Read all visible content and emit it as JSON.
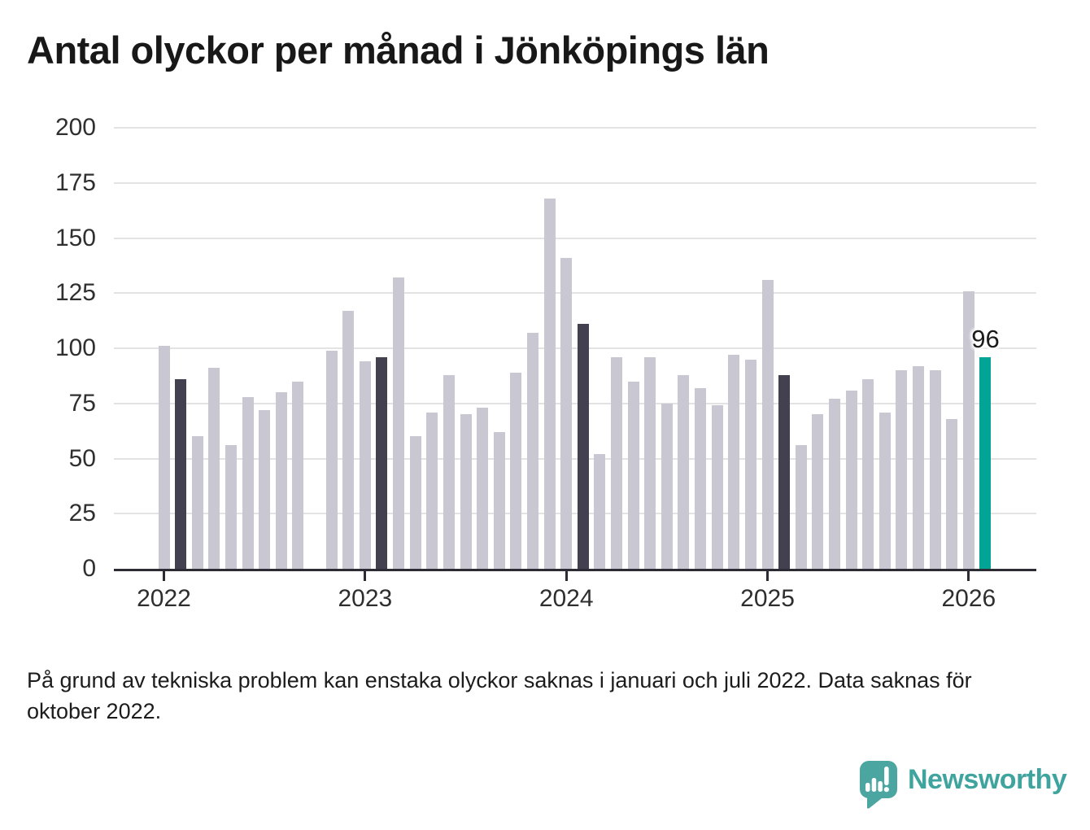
{
  "chart_data": {
    "type": "bar",
    "title": "Antal olyckor per månad i Jönköpings län",
    "xlabel": "",
    "ylabel": "",
    "ylim": [
      0,
      200
    ],
    "grid": true,
    "y_ticks": [
      0,
      25,
      50,
      75,
      100,
      125,
      150,
      175,
      200
    ],
    "categories": [
      "2022-01",
      "2022-02",
      "2022-03",
      "2022-04",
      "2022-05",
      "2022-06",
      "2022-07",
      "2022-08",
      "2022-09",
      "2022-10",
      "2022-11",
      "2022-12",
      "2023-01",
      "2023-02",
      "2023-03",
      "2023-04",
      "2023-05",
      "2023-06",
      "2023-07",
      "2023-08",
      "2023-09",
      "2023-10",
      "2023-11",
      "2023-12",
      "2024-01",
      "2024-02",
      "2024-03",
      "2024-04",
      "2024-05",
      "2024-06",
      "2024-07",
      "2024-08",
      "2024-09",
      "2024-10",
      "2024-11",
      "2024-12",
      "2025-01",
      "2025-02",
      "2025-03",
      "2025-04",
      "2025-05",
      "2025-06",
      "2025-07",
      "2025-08",
      "2025-09",
      "2025-10",
      "2025-11",
      "2025-12",
      "2026-01",
      "2026-02"
    ],
    "values": [
      101,
      86,
      60,
      91,
      56,
      78,
      72,
      80,
      85,
      null,
      99,
      117,
      94,
      96,
      132,
      60,
      71,
      88,
      70,
      73,
      62,
      89,
      107,
      168,
      141,
      111,
      52,
      96,
      85,
      96,
      75,
      88,
      82,
      74,
      97,
      95,
      131,
      88,
      56,
      70,
      77,
      81,
      86,
      71,
      90,
      92,
      90,
      68,
      126,
      96
    ],
    "x_ticks": [
      {
        "label": "2022",
        "index": 0
      },
      {
        "label": "2023",
        "index": 12
      },
      {
        "label": "2024",
        "index": 24
      },
      {
        "label": "2025",
        "index": 36
      },
      {
        "label": "2026",
        "index": 48
      }
    ],
    "highlight_indices": [
      1,
      13,
      25,
      37
    ],
    "current_index": 49,
    "current_value_label": "96",
    "missing_indices": [
      9
    ],
    "colors": {
      "bar_default": "#c9c7d2",
      "bar_highlight": "#43404f",
      "bar_current": "#03a396",
      "axis": "#2d2b33",
      "gridline": "#e3e3e3"
    }
  },
  "footnote": "På grund av tekniska problem kan enstaka olyckor saknas i januari och juli 2022. Data saknas för oktober 2022.",
  "logo": {
    "text": "Newsworthy",
    "color": "#3fa49e"
  }
}
